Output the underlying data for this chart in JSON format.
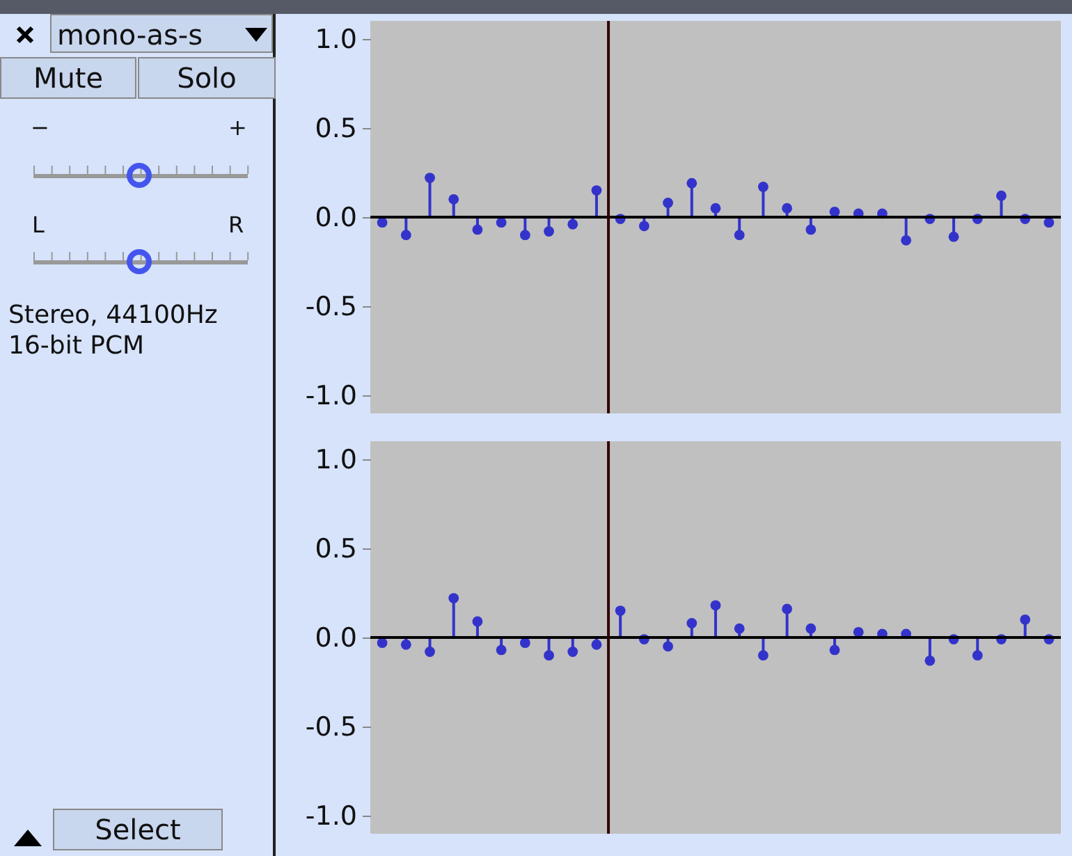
{
  "chart_data": [
    {
      "type": "lollipop",
      "title": "mono-as-s",
      "annotations": [
        "Mute",
        "Solo",
        "−",
        "+",
        "L",
        "R",
        "Stereo, 44100Hz",
        "16-bit PCM",
        "Select"
      ],
      "categories": [
        null,
        null,
        null,
        null,
        null,
        null,
        null,
        null,
        null,
        null,
        null,
        null,
        null,
        null,
        null,
        null,
        null,
        null,
        null,
        null,
        null,
        null,
        null,
        null,
        null,
        null,
        null,
        null,
        null
      ],
      "series": [
        {
          "color": "#3333cc",
          "values": [
            -0.03,
            -0.1,
            0.22,
            0.1,
            -0.07,
            -0.03,
            -0.1,
            -0.08,
            -0.04,
            0.15,
            -0.01,
            -0.05,
            0.08,
            0.19,
            0.05,
            -0.1,
            0.17,
            0.05,
            -0.07,
            0.03,
            0.02,
            0.02,
            -0.13,
            -0.01,
            -0.11,
            -0.01,
            0.12,
            -0.01,
            -0.03
          ]
        }
      ],
      "ylim": [
        -1.1,
        1.1
      ],
      "yticks": [
        {
          "value": -1,
          "label": "-1.0"
        },
        {
          "value": -0.5,
          "label": "-0.5"
        },
        {
          "value": 0,
          "label": "0.0"
        },
        {
          "value": 0.5,
          "label": "0.5"
        },
        {
          "value": 1,
          "label": "1.0"
        }
      ],
      "ref_lines": [
        {
          "axis": "y",
          "value": 0,
          "color": "#000000"
        }
      ],
      "marker": "circle",
      "tick_labels": "y",
      "grid": false
    },
    {
      "type": "lollipop",
      "categories": [
        null,
        null,
        null,
        null,
        null,
        null,
        null,
        null,
        null,
        null,
        null,
        null,
        null,
        null,
        null,
        null,
        null,
        null,
        null,
        null,
        null,
        null,
        null,
        null,
        null,
        null,
        null,
        null,
        null
      ],
      "series": [
        {
          "color": "#3333cc",
          "values": [
            -0.03,
            -0.04,
            -0.08,
            0.22,
            0.09,
            -0.07,
            -0.03,
            -0.1,
            -0.08,
            -0.04,
            0.15,
            -0.01,
            -0.05,
            0.08,
            0.18,
            0.05,
            -0.1,
            0.16,
            0.05,
            -0.07,
            0.03,
            0.02,
            0.02,
            -0.13,
            -0.01,
            -0.1,
            -0.01,
            0.1,
            -0.01
          ]
        }
      ],
      "ylim": [
        -1.1,
        1.1
      ],
      "yticks": [
        {
          "value": -1,
          "label": "-1.0"
        },
        {
          "value": -0.5,
          "label": "-0.5"
        },
        {
          "value": 0,
          "label": "0.0"
        },
        {
          "value": 0.5,
          "label": "0.5"
        },
        {
          "value": 1,
          "label": "1.0"
        }
      ],
      "ref_lines": [
        {
          "axis": "y",
          "value": 0,
          "color": "#000000"
        }
      ],
      "marker": "circle",
      "tick_labels": "y",
      "grid": false
    }
  ]
}
